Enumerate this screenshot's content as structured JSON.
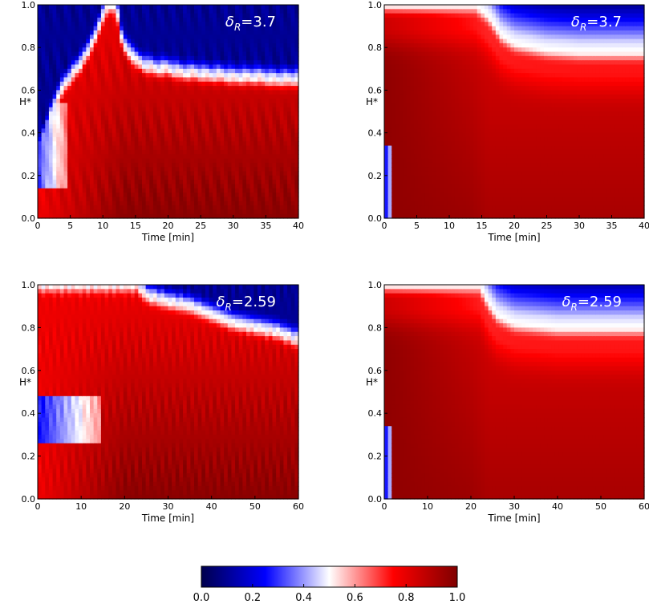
{
  "chart_data": [
    {
      "type": "heatmap",
      "panel_label": {
        "symbol": "δ",
        "subscript": "R",
        "rest": "=3.7"
      },
      "xlabel": "Time [min]",
      "ylabel": "H*",
      "xlim": [
        0,
        40
      ],
      "ylim": [
        0,
        1
      ],
      "xticks": [
        0,
        5,
        10,
        15,
        20,
        25,
        30,
        35,
        40
      ],
      "yticks": [
        0.0,
        0.2,
        0.4,
        0.6,
        0.8,
        1.0
      ],
      "interface_t": [
        0,
        1,
        2,
        3,
        4,
        5,
        6,
        7,
        8,
        9,
        10,
        11,
        12,
        13,
        14,
        15,
        16,
        18,
        20,
        22,
        24,
        26,
        28,
        30,
        32,
        34,
        36,
        38,
        40
      ],
      "interface_h": [
        0.3,
        0.38,
        0.48,
        0.56,
        0.62,
        0.66,
        0.7,
        0.74,
        0.8,
        0.86,
        0.95,
        1.0,
        1.0,
        0.82,
        0.78,
        0.74,
        0.72,
        0.7,
        0.7,
        0.68,
        0.68,
        0.67,
        0.67,
        0.66,
        0.66,
        0.66,
        0.65,
        0.65,
        0.65
      ],
      "rough": true
    },
    {
      "type": "heatmap",
      "panel_label": {
        "symbol": "δ",
        "subscript": "R",
        "rest": "=3.7"
      },
      "xlabel": "Time [min]",
      "ylabel": "H*",
      "xlim": [
        0,
        40
      ],
      "ylim": [
        0,
        1
      ],
      "xticks": [
        0,
        5,
        10,
        15,
        20,
        25,
        30,
        35,
        40
      ],
      "yticks": [
        0.0,
        0.2,
        0.4,
        0.6,
        0.8,
        1.0
      ],
      "interface_t": [
        0,
        2,
        4,
        6,
        8,
        10,
        12,
        14,
        16,
        18,
        20,
        25,
        30,
        35,
        40
      ],
      "interface_h": [
        1.0,
        1.0,
        1.0,
        1.0,
        1.0,
        1.0,
        1.0,
        1.0,
        0.95,
        0.86,
        0.82,
        0.79,
        0.78,
        0.78,
        0.78
      ],
      "rough": false
    },
    {
      "type": "heatmap",
      "panel_label": {
        "symbol": "δ",
        "subscript": "R",
        "rest": "=2.59"
      },
      "xlabel": "Time [min]",
      "ylabel": "H*",
      "xlim": [
        0,
        60
      ],
      "ylim": [
        0,
        1
      ],
      "xticks": [
        0,
        10,
        20,
        30,
        40,
        50,
        60
      ],
      "yticks": [
        0.0,
        0.2,
        0.4,
        0.6,
        0.8,
        1.0
      ],
      "interface_t": [
        0,
        5,
        10,
        15,
        20,
        23,
        25,
        30,
        35,
        40,
        45,
        50,
        55,
        60
      ],
      "interface_h": [
        1.0,
        1.0,
        1.0,
        1.0,
        1.0,
        1.0,
        0.95,
        0.92,
        0.9,
        0.86,
        0.82,
        0.8,
        0.78,
        0.74
      ],
      "rough": true
    },
    {
      "type": "heatmap",
      "panel_label": {
        "symbol": "δ",
        "subscript": "R",
        "rest": "=2.59"
      },
      "xlabel": "Time [min]",
      "ylabel": "H*",
      "xlim": [
        0,
        60
      ],
      "ylim": [
        0,
        1
      ],
      "xticks": [
        0,
        10,
        20,
        30,
        40,
        50,
        60
      ],
      "yticks": [
        0.0,
        0.2,
        0.4,
        0.6,
        0.8,
        1.0
      ],
      "interface_t": [
        0,
        5,
        10,
        15,
        20,
        22,
        24,
        26,
        30,
        40,
        50,
        60
      ],
      "interface_h": [
        1.0,
        1.0,
        1.0,
        1.0,
        1.0,
        1.0,
        0.92,
        0.86,
        0.82,
        0.8,
        0.8,
        0.8
      ],
      "rough": false
    }
  ],
  "colorbar": {
    "range": [
      0.0,
      1.0
    ],
    "ticks": [
      "0.0",
      "0.2",
      "0.4",
      "0.6",
      "0.8",
      "1.0"
    ],
    "colors": [
      "#00004c",
      "#0000ff",
      "#ffffff",
      "#ff0000",
      "#800000"
    ]
  }
}
